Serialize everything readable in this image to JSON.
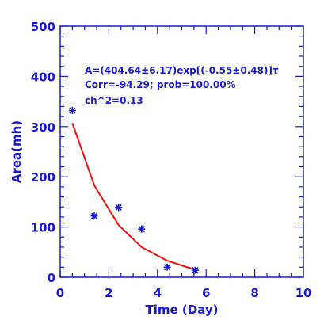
{
  "chart_data": {
    "type": "scatter",
    "title": "",
    "xlabel": "Time (Day)",
    "ylabel": "Area(mh)",
    "xlim": [
      0,
      10
    ],
    "ylim": [
      0,
      500
    ],
    "x_ticks": [
      "0",
      "2",
      "4",
      "6",
      "8",
      "10"
    ],
    "y_ticks": [
      "0",
      "100",
      "200",
      "300",
      "400",
      "500"
    ],
    "grid": false,
    "annotations": [
      "A=(404.64±6.17)exp[(-0.55±0.48)]τ",
      "Corr=-94.29;  prob=100.00%",
      "ch^2=0.13"
    ],
    "series": [
      {
        "type": "scatter",
        "marker": "asterisk",
        "color": "#1a1acc",
        "x": [
          0.5,
          1.4,
          2.4,
          3.35,
          4.4,
          5.55
        ],
        "y": [
          332,
          122,
          139,
          96,
          20,
          14
        ]
      },
      {
        "type": "line",
        "color": "#ee1111",
        "x": [
          0.5,
          1.4,
          2.4,
          3.35,
          4.4,
          5.55
        ],
        "y": [
          307,
          183,
          104,
          60,
          33,
          15
        ]
      }
    ],
    "axis_color": "#1a1acc"
  }
}
